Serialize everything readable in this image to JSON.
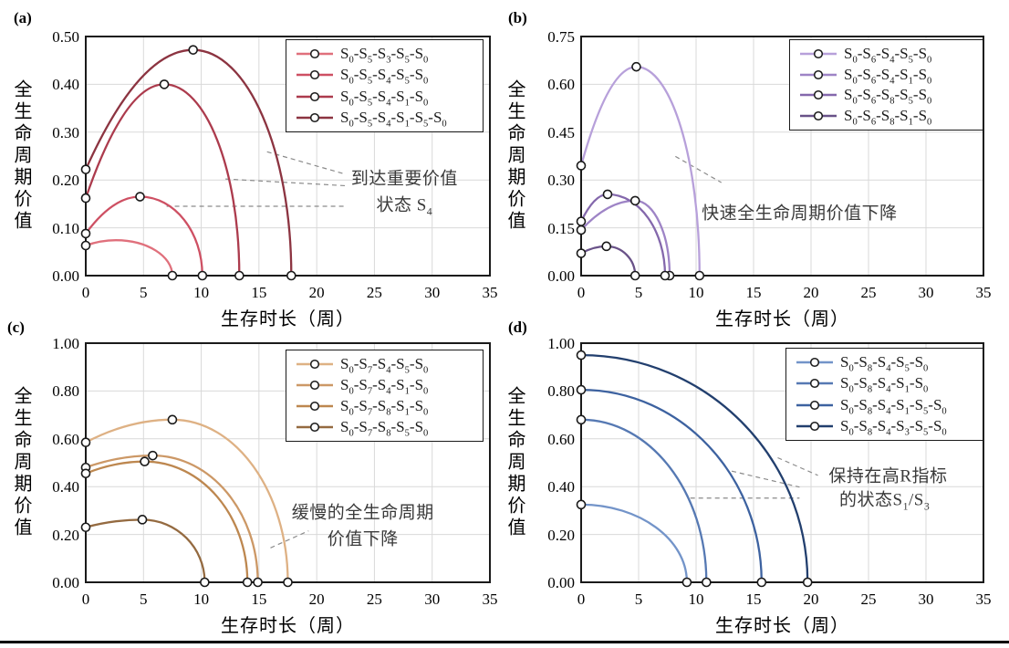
{
  "figure": {
    "marker_style": "open-circle",
    "grid_color": "#d9d9d9",
    "axis_color": "#1a1a1a",
    "annotation_color": "#3a3a3a",
    "leader_line_style": "dashed"
  },
  "chart_data": [
    {
      "panel": "(a)",
      "type": "line",
      "xlabel": "生存时长（周）",
      "ylabel": "全生命周期价值",
      "xlim": [
        0,
        35
      ],
      "ylim": [
        0,
        0.5
      ],
      "xticks": [
        0,
        5,
        10,
        15,
        20,
        25,
        30,
        35
      ],
      "yticks": [
        0,
        0.1,
        0.2,
        0.3,
        0.4,
        0.5
      ],
      "ytick_labels": [
        "0.00",
        "0.10",
        "0.20",
        "0.30",
        "0.40",
        "0.50"
      ],
      "grid": true,
      "legend_position": "upper right",
      "series": [
        {
          "name": "S0-S5-S3-S5-S0",
          "color": "#e0707c",
          "start": [
            0,
            0.063
          ],
          "peak": [
            2.6,
            0.074
          ],
          "end": [
            7.5,
            0
          ],
          "peak_marker": false
        },
        {
          "name": "S0-S5-S4-S5-S0",
          "color": "#ce5063",
          "start": [
            0,
            0.088
          ],
          "peak": [
            4.7,
            0.165
          ],
          "end": [
            10.1,
            0
          ],
          "peak_marker": true
        },
        {
          "name": "S0-S5-S4-S1-S0",
          "color": "#ac3b4d",
          "start": [
            0,
            0.162
          ],
          "peak": [
            6.8,
            0.4
          ],
          "end": [
            13.3,
            0
          ],
          "peak_marker": true
        },
        {
          "name": "S0-S5-S4-S1-S5-S0",
          "color": "#8c3441",
          "start": [
            0,
            0.222
          ],
          "peak": [
            9.3,
            0.472
          ],
          "end": [
            17.8,
            0
          ],
          "peak_marker": true
        }
      ],
      "annotation": {
        "lines": [
          "到达重要价值",
          "状态 S4"
        ],
        "pos": [
          [
            27.6,
            0.206
          ],
          [
            27.6,
            0.15
          ]
        ],
        "leaders": [
          [
            15.7,
            0.259,
            22.5,
            0.212
          ],
          [
            12.1,
            0.202,
            22.5,
            0.188
          ],
          [
            7.0,
            0.145,
            22.5,
            0.145
          ]
        ]
      }
    },
    {
      "panel": "(b)",
      "type": "line",
      "xlabel": "生存时长（周）",
      "ylabel": "全生命周期价值",
      "xlim": [
        0,
        35
      ],
      "ylim": [
        0,
        0.75
      ],
      "xticks": [
        0,
        5,
        10,
        15,
        20,
        25,
        30,
        35
      ],
      "yticks": [
        0,
        0.15,
        0.3,
        0.45,
        0.6,
        0.75
      ],
      "ytick_labels": [
        "0.00",
        "0.15",
        "0.30",
        "0.45",
        "0.60",
        "0.75"
      ],
      "grid": true,
      "legend_position": "upper right",
      "series": [
        {
          "name": "S0-S6-S4-S5-S0",
          "color": "#b7a0da",
          "start": [
            0,
            0.345
          ],
          "peak": [
            4.8,
            0.655
          ],
          "end": [
            10.3,
            0
          ],
          "peak_marker": true
        },
        {
          "name": "S0-S6-S4-S1-S0",
          "color": "#9e84c6",
          "start": [
            0,
            0.143
          ],
          "peak": [
            4.7,
            0.235
          ],
          "end": [
            7.7,
            0
          ],
          "peak_marker": true
        },
        {
          "name": "S0-S6-S8-S5-S0",
          "color": "#8468ac",
          "start": [
            0,
            0.17
          ],
          "peak": [
            2.3,
            0.255
          ],
          "end": [
            7.3,
            0
          ],
          "peak_marker": true
        },
        {
          "name": "S0-S6-S8-S1-S0",
          "color": "#695288",
          "start": [
            0,
            0.07
          ],
          "peak": [
            2.2,
            0.092
          ],
          "end": [
            4.7,
            0
          ],
          "peak_marker": true
        }
      ],
      "annotation": {
        "lines": [
          "快速全生命周期价值下降"
        ],
        "pos": [
          [
            19.0,
            0.2
          ]
        ],
        "leaders": [
          [
            8.2,
            0.374,
            12.2,
            0.292
          ]
        ]
      }
    },
    {
      "panel": "(c)",
      "type": "line",
      "xlabel": "生存时长（周）",
      "ylabel": "全生命周期价值",
      "xlim": [
        0,
        35
      ],
      "ylim": [
        0,
        1.0
      ],
      "xticks": [
        0,
        5,
        10,
        15,
        20,
        25,
        30,
        35
      ],
      "yticks": [
        0,
        0.2,
        0.4,
        0.6,
        0.8,
        1.0
      ],
      "ytick_labels": [
        "0.00",
        "0.20",
        "0.40",
        "0.60",
        "0.80",
        "1.00"
      ],
      "grid": true,
      "legend_position": "upper right",
      "series": [
        {
          "name": "S0-S7-S4-S5-S0",
          "color": "#deb184",
          "start": [
            0,
            0.585
          ],
          "peak": [
            7.5,
            0.68
          ],
          "end": [
            17.5,
            0
          ],
          "peak_marker": true
        },
        {
          "name": "S0-S7-S4-S1-S0",
          "color": "#cc9866",
          "start": [
            0,
            0.48
          ],
          "peak": [
            5.8,
            0.53
          ],
          "end": [
            14.9,
            0
          ],
          "peak_marker": true
        },
        {
          "name": "S0-S7-S8-S1-S0",
          "color": "#bd874f",
          "start": [
            0,
            0.455
          ],
          "peak": [
            5.1,
            0.505
          ],
          "end": [
            14.0,
            0
          ],
          "peak_marker": true
        },
        {
          "name": "S0-S7-S8-S5-S0",
          "color": "#946a40",
          "start": [
            0,
            0.23
          ],
          "peak": [
            4.9,
            0.262
          ],
          "end": [
            10.3,
            0
          ],
          "peak_marker": true
        }
      ],
      "annotation": {
        "lines": [
          "缓慢的全生命周期",
          "价值下降"
        ],
        "pos": [
          [
            24.0,
            0.296
          ],
          [
            24.0,
            0.188
          ]
        ],
        "leaders": [
          [
            16.0,
            0.144,
            19.3,
            0.215
          ]
        ]
      }
    },
    {
      "panel": "(d)",
      "type": "line",
      "xlabel": "生存时长（周）",
      "ylabel": "全生命周期价值",
      "xlim": [
        0,
        35
      ],
      "ylim": [
        0,
        1.0
      ],
      "xticks": [
        0,
        5,
        10,
        15,
        20,
        25,
        30,
        35
      ],
      "yticks": [
        0,
        0.2,
        0.4,
        0.6,
        0.8,
        1.0
      ],
      "ytick_labels": [
        "0.00",
        "0.20",
        "0.40",
        "0.60",
        "0.80",
        "1.00"
      ],
      "grid": true,
      "legend_position": "upper right",
      "series": [
        {
          "name": "S0-S8-S4-S5-S0",
          "color": "#7394c9",
          "start": [
            0,
            0.325
          ],
          "peak": [
            0,
            0.325
          ],
          "end": [
            9.2,
            0
          ],
          "peak_marker": false
        },
        {
          "name": "S0-S8-S4-S1-S0",
          "color": "#5679b3",
          "start": [
            0,
            0.68
          ],
          "peak": [
            0,
            0.68
          ],
          "end": [
            10.9,
            0
          ],
          "peak_marker": false
        },
        {
          "name": "S0-S8-S4-S1-S5-S0",
          "color": "#3d62a0",
          "start": [
            0,
            0.805
          ],
          "peak": [
            0,
            0.805
          ],
          "end": [
            15.7,
            0
          ],
          "peak_marker": false
        },
        {
          "name": "S0-S8-S4-S3-S5-S0",
          "color": "#223f6e",
          "start": [
            0,
            0.95
          ],
          "peak": [
            0,
            0.95
          ],
          "end": [
            19.7,
            0
          ],
          "peak_marker": false
        }
      ],
      "annotation": {
        "lines": [
          "保持在高R指标",
          "的状态S1/S3"
        ],
        "pos": [
          [
            26.7,
            0.449
          ],
          [
            26.4,
            0.353
          ]
        ],
        "leaders": [
          [
            17.1,
            0.521,
            20.6,
            0.447
          ],
          [
            13.1,
            0.465,
            19.0,
            0.398
          ],
          [
            9.5,
            0.352,
            19.0,
            0.352
          ]
        ]
      }
    }
  ]
}
